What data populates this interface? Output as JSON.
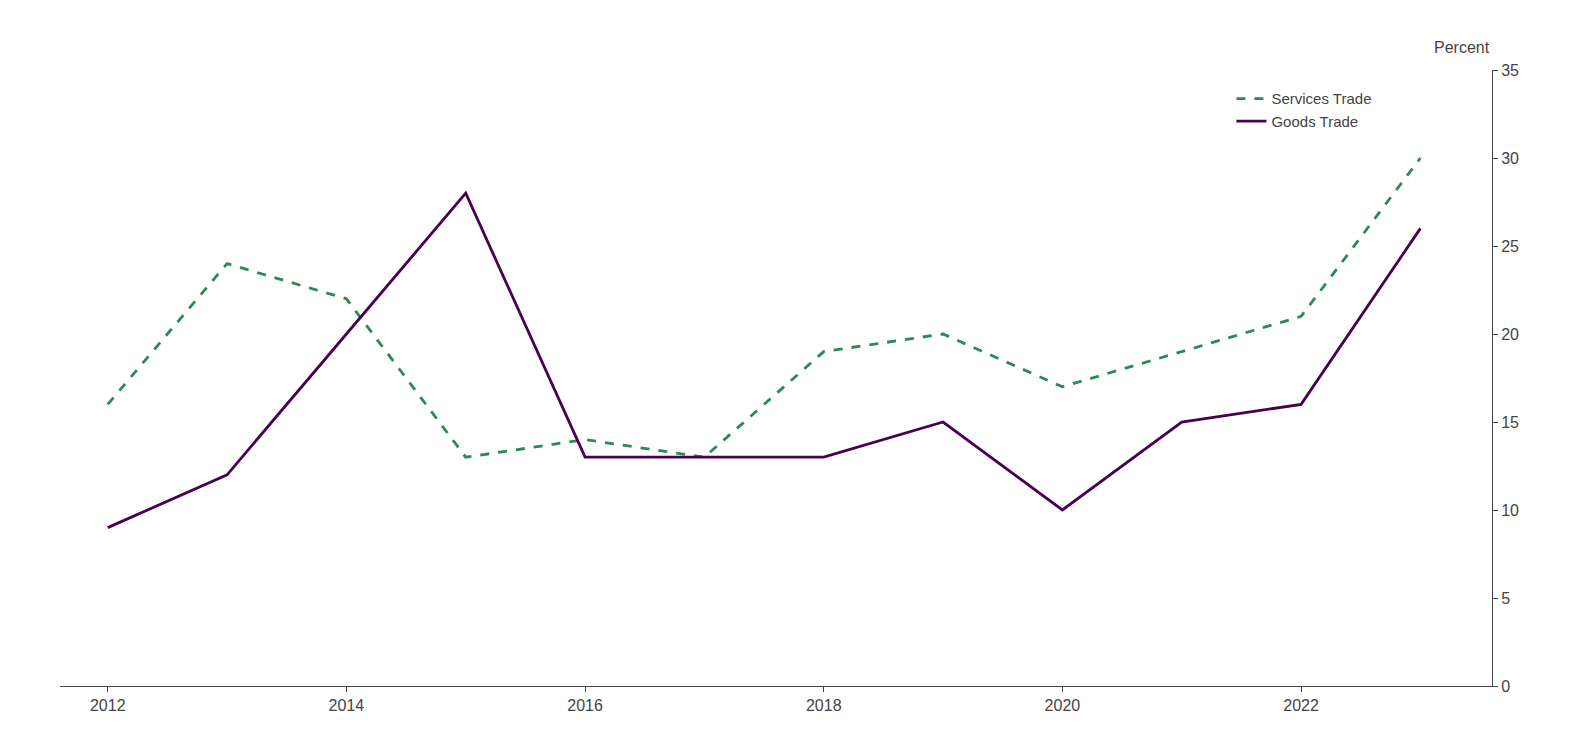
{
  "chart_data": {
    "type": "line",
    "ylabel": "Percent",
    "x": [
      2012,
      2013,
      2014,
      2015,
      2016,
      2017,
      2018,
      2019,
      2020,
      2021,
      2022,
      2023
    ],
    "series": [
      {
        "name": "Services Trade",
        "color": "#2a8a57",
        "line_style": "dashed",
        "values": [
          16,
          24,
          22,
          13,
          14,
          13,
          19,
          20,
          17,
          19,
          21,
          30
        ]
      },
      {
        "name": "Goods Trade",
        "color": "#4a0050",
        "line_style": "solid",
        "values": [
          9,
          12,
          20,
          28,
          13,
          13,
          13,
          15,
          10,
          15,
          16,
          26
        ]
      }
    ],
    "xlim": [
      2011.6,
      2023.6
    ],
    "xticks": [
      2012,
      2014,
      2016,
      2018,
      2020,
      2022
    ],
    "ylim": [
      0,
      35
    ],
    "yticks": [
      0,
      5,
      10,
      15,
      20,
      25,
      30,
      35
    ],
    "grid": false,
    "legend": "upper right"
  }
}
